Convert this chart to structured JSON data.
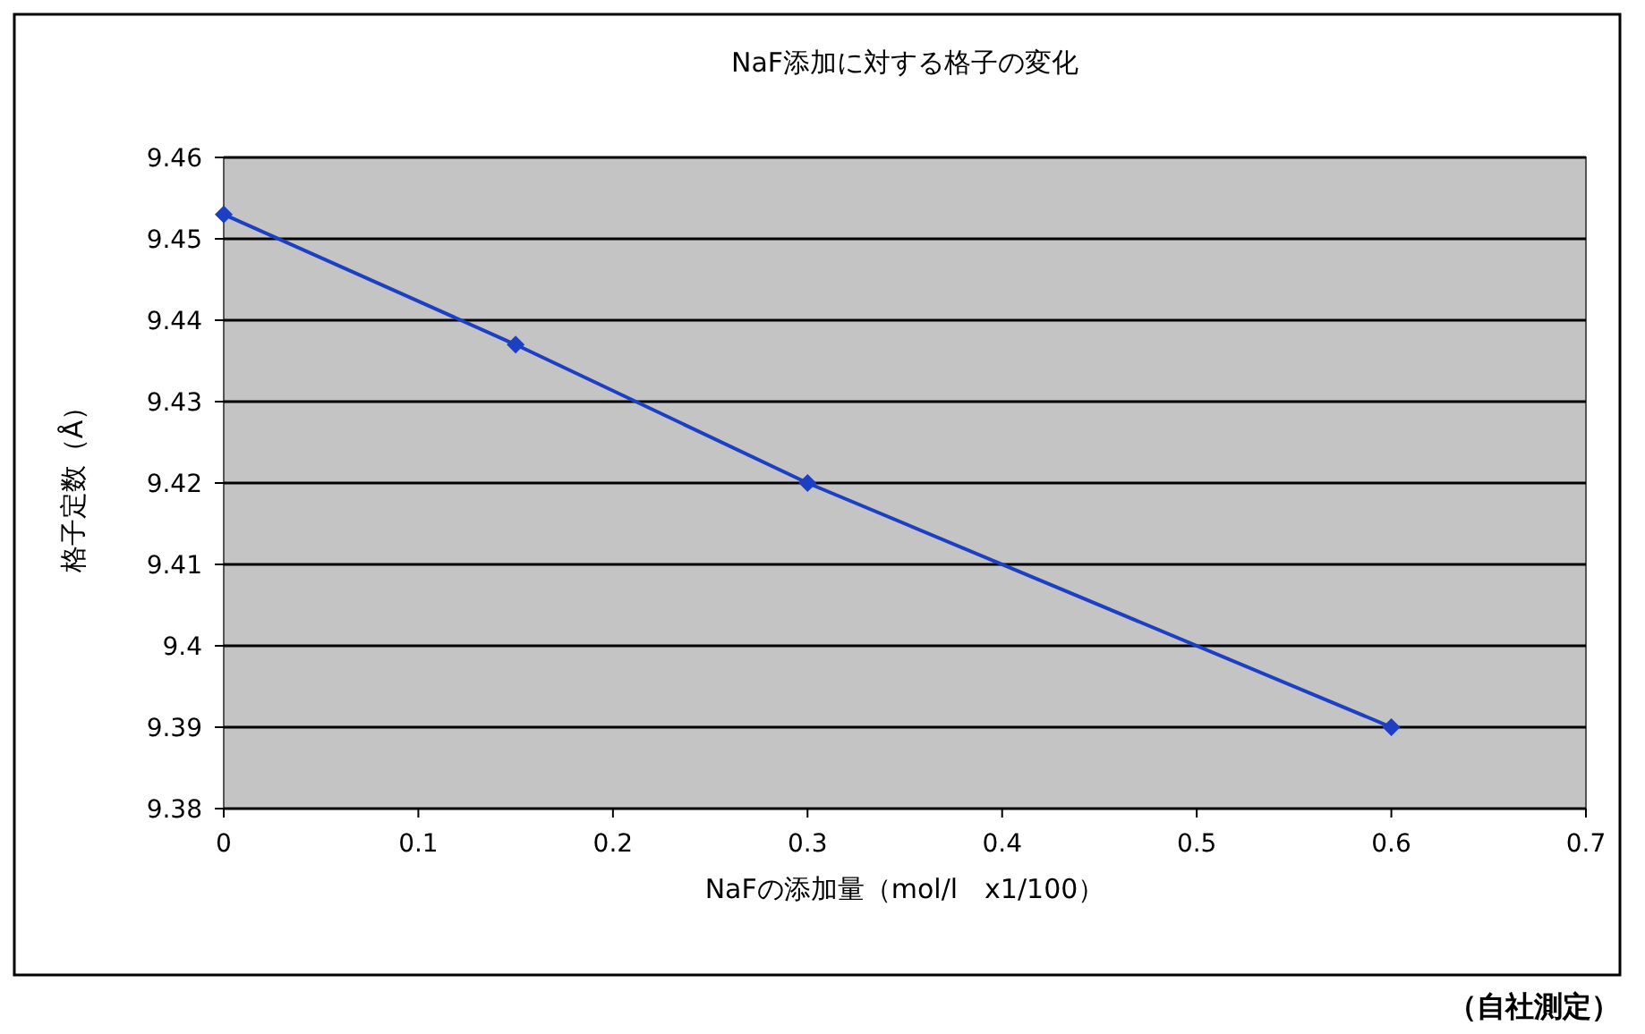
{
  "chart_data": {
    "type": "line",
    "title": "NaF添加に対する格子の変化",
    "xlabel": "NaFの添加量（mol/l　x1/100）",
    "ylabel": "格子定数（Å）",
    "annotations": [
      "（自社測定）"
    ],
    "x": [
      0,
      0.15,
      0.3,
      0.6
    ],
    "series": [
      {
        "color": "#1c3fc4",
        "values": [
          9.453,
          9.437,
          9.42,
          9.39
        ]
      }
    ],
    "xlim": [
      0,
      0.7
    ],
    "xticks": [
      0,
      0.1,
      0.2,
      0.3,
      0.4,
      0.5,
      0.6,
      0.7
    ],
    "ylim": [
      9.38,
      9.46
    ],
    "yticks": [
      9.38,
      9.39,
      9.4,
      9.41,
      9.42,
      9.43,
      9.44,
      9.45,
      9.46
    ],
    "grid": "y",
    "marker": "diamond",
    "line_style": "solid"
  }
}
